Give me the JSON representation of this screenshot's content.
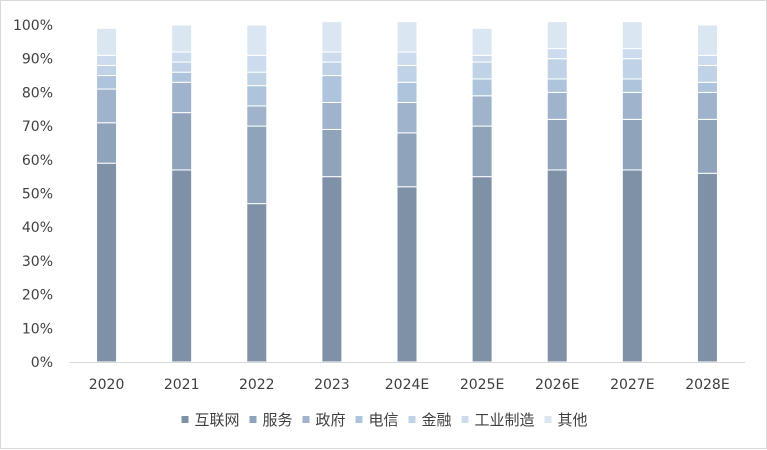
{
  "chart_data": {
    "type": "bar",
    "stacked": true,
    "categories": [
      "2020",
      "2021",
      "2022",
      "2023",
      "2024E",
      "2025E",
      "2026E",
      "2027E",
      "2028E"
    ],
    "series": [
      {
        "name": "互联网",
        "color": "#7f91a7",
        "values": [
          59,
          57,
          47,
          55,
          52,
          55,
          57,
          57,
          56
        ]
      },
      {
        "name": "服务",
        "color": "#8fa3bb",
        "values": [
          12,
          17,
          23,
          14,
          16,
          15,
          15,
          15,
          16
        ]
      },
      {
        "name": "政府",
        "color": "#9fb4cc",
        "values": [
          10,
          9,
          6,
          8,
          9,
          9,
          8,
          8,
          8
        ]
      },
      {
        "name": "电信",
        "color": "#aec4dc",
        "values": [
          4,
          3,
          6,
          8,
          6,
          5,
          4,
          4,
          3
        ]
      },
      {
        "name": "金融",
        "color": "#bfd2e6",
        "values": [
          3,
          3,
          4,
          4,
          5,
          5,
          6,
          6,
          5
        ]
      },
      {
        "name": "工业制造",
        "color": "#ccdcee",
        "values": [
          3,
          3,
          5,
          3,
          4,
          2,
          3,
          3,
          3
        ]
      },
      {
        "name": "其他",
        "color": "#dbe6f3",
        "values": [
          8,
          8,
          9,
          9,
          9,
          8,
          8,
          8,
          9
        ]
      }
    ],
    "y_ticks": [
      "0%",
      "10%",
      "20%",
      "30%",
      "40%",
      "50%",
      "60%",
      "70%",
      "80%",
      "90%",
      "100%"
    ],
    "ylim": [
      0,
      100
    ],
    "grid": false,
    "legend_position": "bottom"
  }
}
